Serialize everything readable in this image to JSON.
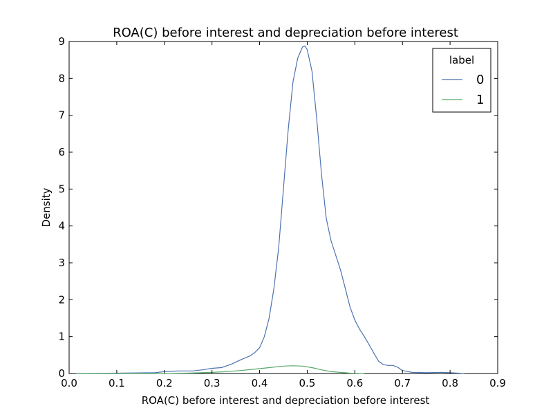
{
  "chart_data": {
    "type": "line",
    "title": "ROA(C) before interest and depreciation before interest",
    "xlabel": "ROA(C) before interest and depreciation before interest",
    "ylabel": "Density",
    "xlim": [
      0.0,
      0.9
    ],
    "ylim": [
      0,
      9
    ],
    "x_ticks": [
      "0.0",
      "0.1",
      "0.2",
      "0.3",
      "0.4",
      "0.5",
      "0.6",
      "0.7",
      "0.8",
      "0.9"
    ],
    "y_ticks": [
      "0",
      "1",
      "2",
      "3",
      "4",
      "5",
      "6",
      "7",
      "8",
      "9"
    ],
    "grid": false,
    "legend": {
      "title": "label",
      "position": "top-right"
    },
    "series": [
      {
        "name": "0",
        "color": "#4c72b0",
        "points": [
          [
            0.015,
            0.0
          ],
          [
            0.1,
            0.01
          ],
          [
            0.18,
            0.02
          ],
          [
            0.2,
            0.05
          ],
          [
            0.23,
            0.07
          ],
          [
            0.26,
            0.07
          ],
          [
            0.28,
            0.1
          ],
          [
            0.3,
            0.14
          ],
          [
            0.32,
            0.16
          ],
          [
            0.34,
            0.25
          ],
          [
            0.36,
            0.37
          ],
          [
            0.38,
            0.48
          ],
          [
            0.39,
            0.57
          ],
          [
            0.4,
            0.7
          ],
          [
            0.41,
            1.0
          ],
          [
            0.42,
            1.5
          ],
          [
            0.43,
            2.3
          ],
          [
            0.44,
            3.4
          ],
          [
            0.45,
            5.0
          ],
          [
            0.46,
            6.6
          ],
          [
            0.47,
            7.9
          ],
          [
            0.48,
            8.55
          ],
          [
            0.49,
            8.85
          ],
          [
            0.495,
            8.88
          ],
          [
            0.5,
            8.78
          ],
          [
            0.51,
            8.2
          ],
          [
            0.52,
            6.9
          ],
          [
            0.53,
            5.4
          ],
          [
            0.54,
            4.2
          ],
          [
            0.55,
            3.6
          ],
          [
            0.56,
            3.2
          ],
          [
            0.57,
            2.8
          ],
          [
            0.58,
            2.3
          ],
          [
            0.59,
            1.8
          ],
          [
            0.6,
            1.45
          ],
          [
            0.61,
            1.2
          ],
          [
            0.62,
            1.0
          ],
          [
            0.63,
            0.78
          ],
          [
            0.64,
            0.55
          ],
          [
            0.65,
            0.33
          ],
          [
            0.66,
            0.24
          ],
          [
            0.67,
            0.22
          ],
          [
            0.68,
            0.22
          ],
          [
            0.69,
            0.17
          ],
          [
            0.7,
            0.08
          ],
          [
            0.72,
            0.03
          ],
          [
            0.75,
            0.02
          ],
          [
            0.78,
            0.03
          ],
          [
            0.8,
            0.02
          ],
          [
            0.83,
            0.0
          ]
        ]
      },
      {
        "name": "1",
        "color": "#55a868",
        "points": [
          [
            0.015,
            0.0
          ],
          [
            0.1,
            0.0
          ],
          [
            0.2,
            0.0
          ],
          [
            0.25,
            0.01
          ],
          [
            0.3,
            0.03
          ],
          [
            0.33,
            0.05
          ],
          [
            0.36,
            0.08
          ],
          [
            0.39,
            0.12
          ],
          [
            0.42,
            0.16
          ],
          [
            0.45,
            0.2
          ],
          [
            0.47,
            0.21
          ],
          [
            0.49,
            0.2
          ],
          [
            0.51,
            0.16
          ],
          [
            0.53,
            0.1
          ],
          [
            0.55,
            0.05
          ],
          [
            0.57,
            0.03
          ],
          [
            0.59,
            0.01
          ],
          [
            0.62,
            0.0
          ]
        ]
      }
    ]
  }
}
